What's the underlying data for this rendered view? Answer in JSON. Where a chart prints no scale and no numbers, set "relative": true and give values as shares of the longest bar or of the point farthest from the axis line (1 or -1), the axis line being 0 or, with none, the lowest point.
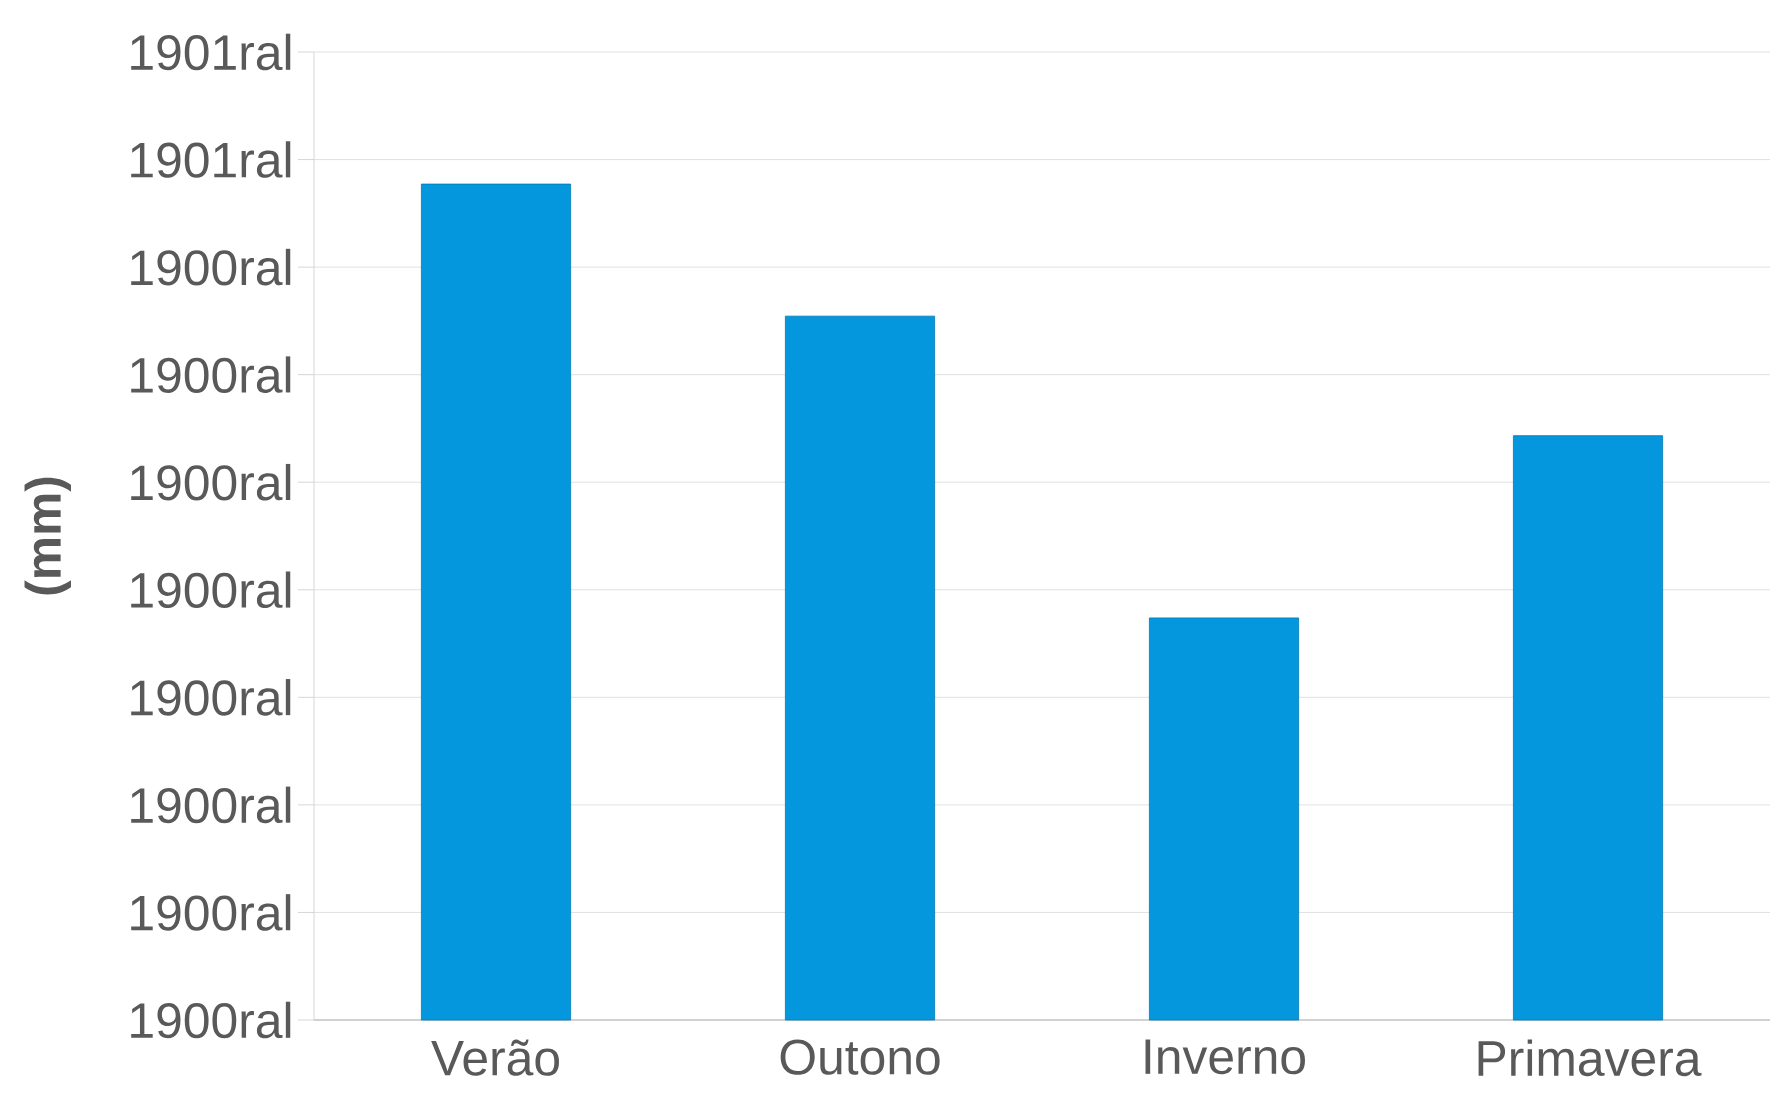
{
  "chart_data": {
    "type": "bar",
    "ylabel": "(mm)",
    "categories": [
      "Verão",
      "Outono",
      "Inverno",
      "Primavera"
    ],
    "values": [
      1,
      0.842,
      0.481,
      0.699
    ],
    "relative": true,
    "color": "#0497de",
    "annotations": [
      "1900ral",
      "1900ral",
      "1900ral",
      "1900ral",
      "1900ral",
      "1900ral",
      "1900ral",
      "1900ral",
      "1901ral",
      "1901ral"
    ],
    "grid": "y"
  }
}
